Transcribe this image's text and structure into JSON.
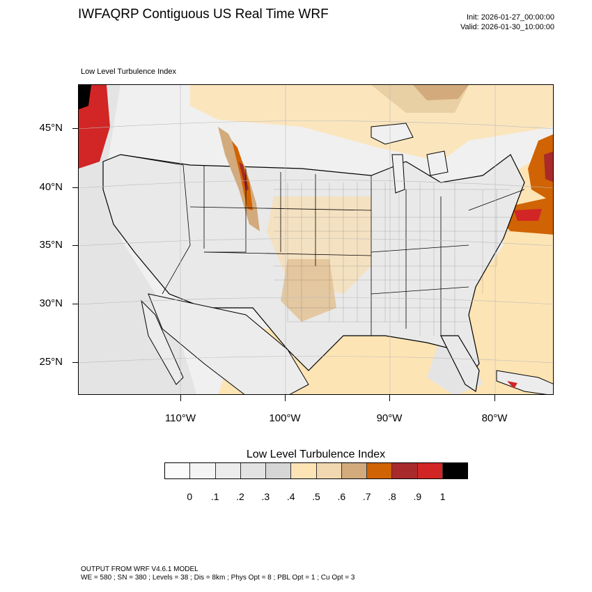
{
  "header": {
    "title": "IWFAQRP Contiguous US Real Time WRF",
    "init": "Init: 2026-01-27_00:00:00",
    "valid": "Valid: 2026-01-30_10:00:00"
  },
  "map": {
    "field_label": "Low Level Turbulence Index",
    "lat_labels": [
      "45°N",
      "40°N",
      "35°N",
      "30°N",
      "25°N"
    ],
    "lon_labels": [
      "110°W",
      "100°W",
      "90°W",
      "80°W"
    ]
  },
  "legend": {
    "title": "Low Level Turbulence Index",
    "colors": [
      "#fbfbfb",
      "#f4f4f4",
      "#ececec",
      "#e2e2e2",
      "#d6d6d6",
      "#fde4b4",
      "#f2d8b0",
      "#d2aa7c",
      "#d06303",
      "#a82a2a",
      "#d22525",
      "#000000"
    ],
    "tick_labels": [
      "0",
      ".1",
      ".2",
      ".3",
      ".4",
      ".5",
      ".6",
      ".7",
      ".8",
      ".9",
      "1"
    ]
  },
  "footer": {
    "line1": "OUTPUT FROM WRF V4.6.1 MODEL",
    "line2": "WE = 580 ; SN = 380 ; Levels = 38 ; Dis = 8km ; Phys Opt = 8 ; PBL Opt = 1 ; Cu Opt = 3"
  }
}
